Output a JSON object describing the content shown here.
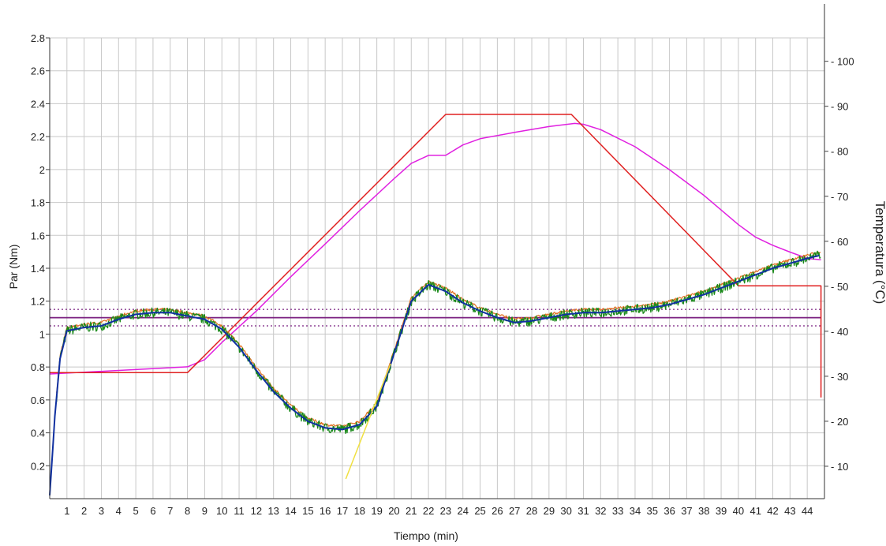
{
  "chart_data": {
    "type": "line",
    "xlabel": "Tiempo (min)",
    "ylabel_left": "Par (Nm)",
    "ylabel_right": "Temperatura (°C)",
    "xlim": [
      0,
      45
    ],
    "ylim_left": [
      0,
      2.8
    ],
    "ylim_right": [
      2.8,
      105.2
    ],
    "x_ticks": [
      1,
      2,
      3,
      4,
      5,
      6,
      7,
      8,
      9,
      10,
      11,
      12,
      13,
      14,
      15,
      16,
      17,
      18,
      19,
      20,
      21,
      22,
      23,
      24,
      25,
      26,
      27,
      28,
      29,
      30,
      31,
      32,
      33,
      34,
      35,
      36,
      37,
      38,
      39,
      40,
      41,
      42,
      43,
      44
    ],
    "y_ticks_left": [
      0.2,
      0.4,
      0.6,
      0.8,
      1,
      1.2,
      1.4,
      1.6,
      1.8,
      2,
      2.2,
      2.4,
      2.6,
      2.8
    ],
    "y_ticks_right": [
      10,
      20,
      30,
      40,
      50,
      60,
      70,
      80,
      90,
      100
    ],
    "grid": true,
    "colors": {
      "setpoint": "#e02020",
      "actual_temp": "#e020e0",
      "torque_raw": "#1a8a1a",
      "torque_smooth": "#1030a0",
      "torque_upper": "#e07020",
      "tangent": "#f0e040",
      "reference": "#7a2080"
    },
    "series": [
      {
        "key": "setpoint",
        "axis": "right",
        "x": [
          0,
          8,
          23,
          30.3,
          40,
          44.8,
          44.8
        ],
        "y": [
          30.8,
          30.8,
          88.2,
          88.2,
          50.1,
          50.1,
          25.3
        ]
      },
      {
        "key": "actual_temp",
        "axis": "right",
        "x": [
          0,
          4,
          8,
          9,
          10,
          12,
          14,
          16,
          18,
          20,
          21,
          22,
          23,
          24,
          25,
          27,
          29,
          30.5,
          31,
          32,
          34,
          36,
          38,
          40,
          41,
          42,
          43,
          44,
          44.8
        ],
        "y": [
          30.5,
          31.3,
          32.1,
          33.7,
          37.5,
          44.5,
          52.1,
          59.4,
          66.8,
          73.9,
          77.3,
          79.1,
          79.1,
          81.4,
          82.8,
          84.2,
          85.5,
          86.2,
          86,
          84.8,
          81,
          75.9,
          70.2,
          63.7,
          60.9,
          59.1,
          57.6,
          56.2,
          55.9
        ]
      },
      {
        "key": "torque_smooth",
        "axis": "left",
        "x": [
          0,
          0.3,
          0.6,
          1,
          2,
          3,
          4,
          5,
          6,
          7,
          8,
          9,
          10,
          11,
          12,
          13,
          14,
          15,
          16,
          17,
          18,
          19,
          20,
          21,
          22,
          23,
          24,
          25,
          26,
          27,
          28,
          29,
          30,
          31,
          32,
          33,
          34,
          35,
          36,
          37,
          38,
          39,
          40,
          41,
          42,
          43,
          44,
          44.8
        ],
        "y": [
          0.02,
          0.5,
          0.85,
          1.02,
          1.04,
          1.05,
          1.09,
          1.12,
          1.13,
          1.13,
          1.11,
          1.09,
          1.03,
          0.92,
          0.78,
          0.65,
          0.55,
          0.47,
          0.43,
          0.42,
          0.45,
          0.56,
          0.88,
          1.2,
          1.3,
          1.26,
          1.19,
          1.14,
          1.1,
          1.07,
          1.08,
          1.1,
          1.12,
          1.13,
          1.13,
          1.14,
          1.15,
          1.16,
          1.18,
          1.21,
          1.24,
          1.28,
          1.32,
          1.36,
          1.4,
          1.43,
          1.46,
          1.48
        ]
      },
      {
        "key": "tangent",
        "axis": "left",
        "x": [
          17.2,
          19.8
        ],
        "y": [
          0.12,
          0.82
        ]
      },
      {
        "key": "reference",
        "axis": "left",
        "style": "solid",
        "x": [
          0,
          44.8
        ],
        "y": [
          1.1,
          1.1
        ]
      },
      {
        "key": "reference",
        "axis": "left",
        "style": "dotted",
        "x": [
          0,
          44.8
        ],
        "y": [
          1.15,
          1.15
        ]
      },
      {
        "key": "reference",
        "axis": "left",
        "style": "dotted",
        "x": [
          0,
          44.8
        ],
        "y": [
          1.05,
          1.05
        ]
      }
    ]
  }
}
